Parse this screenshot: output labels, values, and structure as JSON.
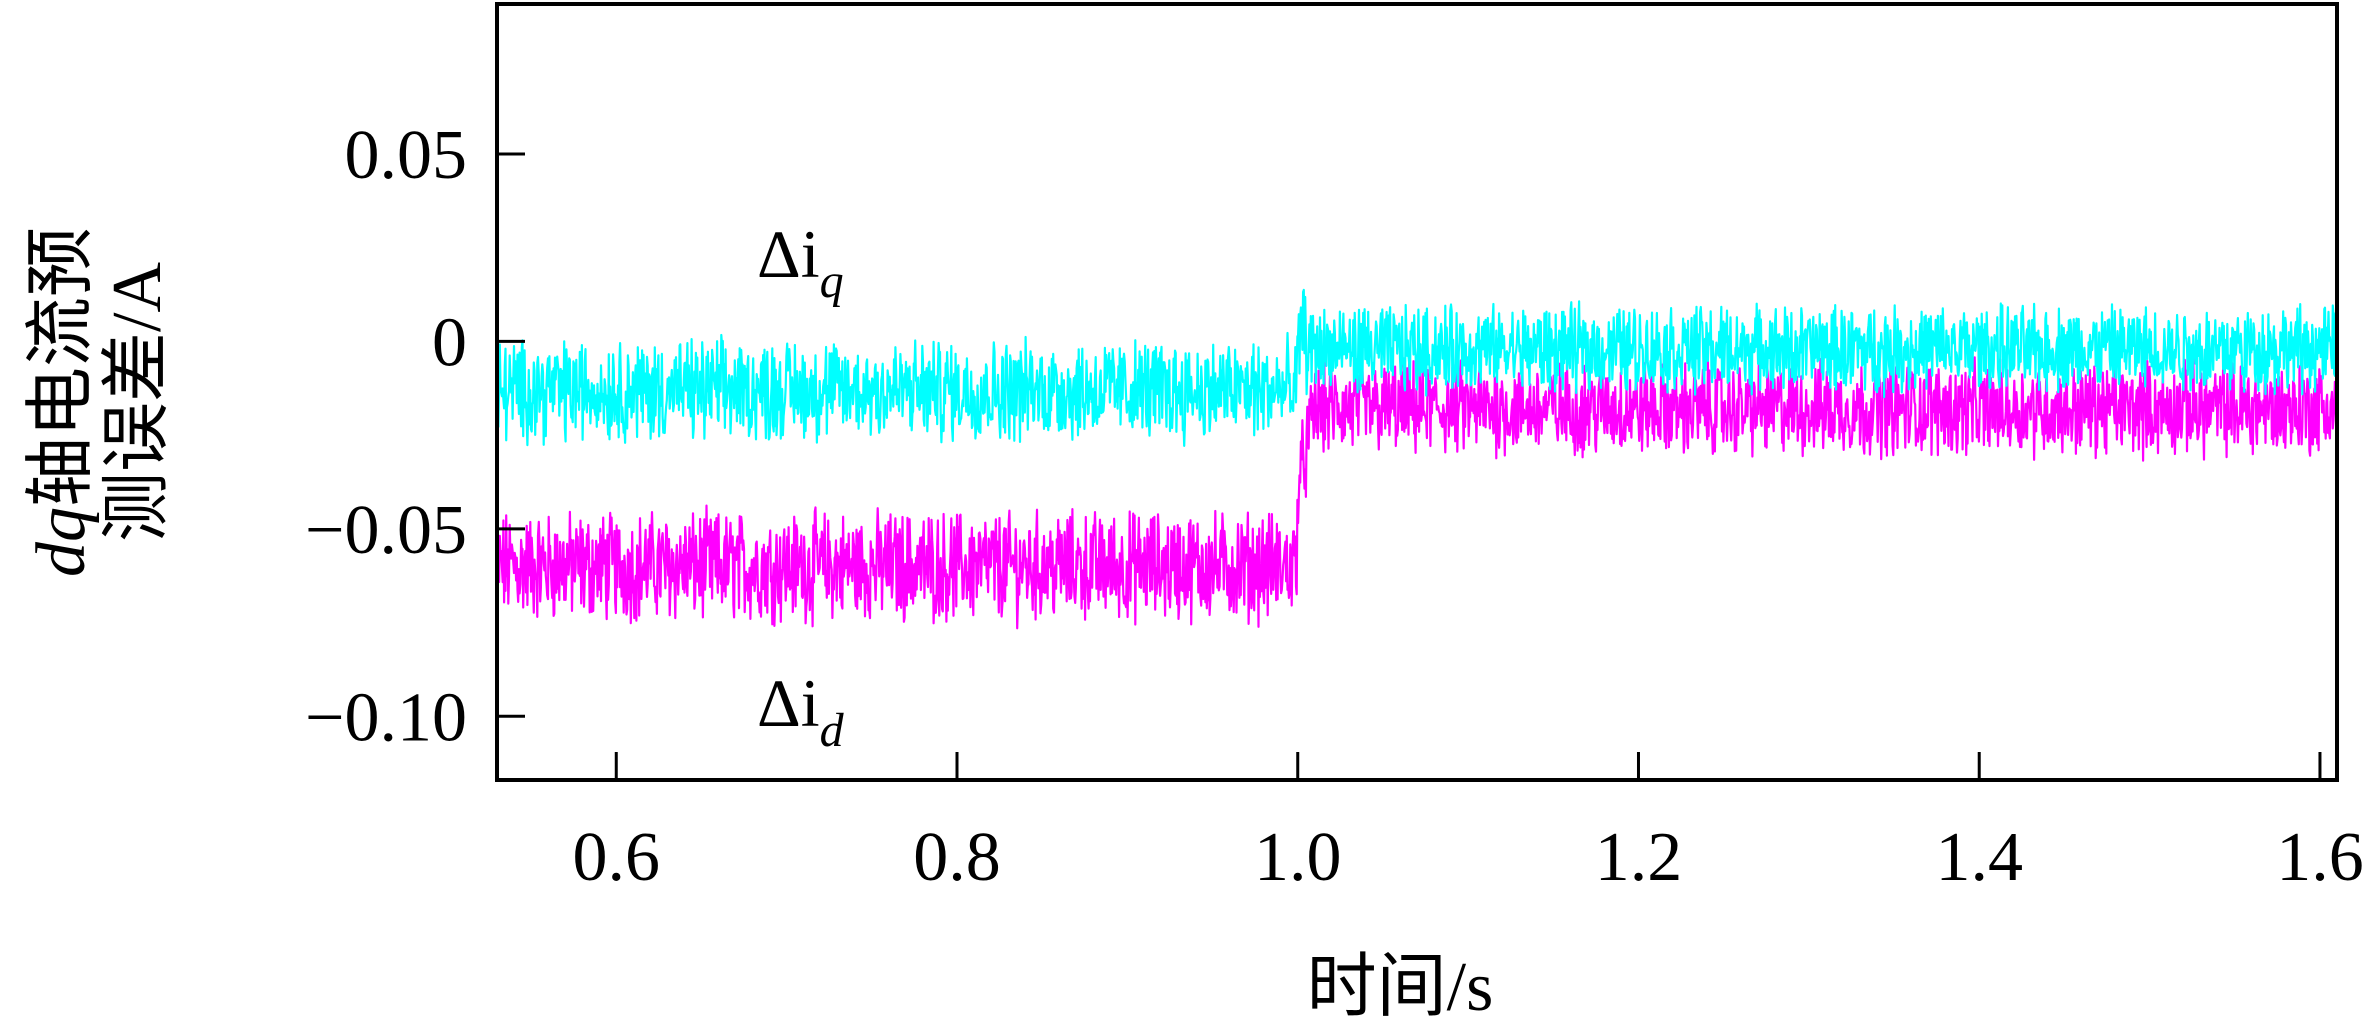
{
  "chart_data": {
    "type": "line",
    "xlabel": "时间/s",
    "ylabel_line1": "dq轴电流预",
    "ylabel_line1_italic": "dq",
    "ylabel_line1_rest": "轴电流预",
    "ylabel_line2": "测误差/A",
    "xlim": [
      0.53,
      1.61
    ],
    "ylim": [
      -0.117,
      0.09
    ],
    "x_ticks": [
      {
        "value": 0.6,
        "label": "0.6"
      },
      {
        "value": 0.8,
        "label": "0.8"
      },
      {
        "value": 1.0,
        "label": "1.0"
      },
      {
        "value": 1.2,
        "label": "1.2"
      },
      {
        "value": 1.4,
        "label": "1.4"
      },
      {
        "value": 1.6,
        "label": "1.6"
      }
    ],
    "y_ticks": [
      {
        "value": 0.05,
        "label": "0.05"
      },
      {
        "value": 0.0,
        "label": "0"
      },
      {
        "value": -0.05,
        "label": "−0.05"
      },
      {
        "value": -0.1,
        "label": "−0.10"
      }
    ],
    "series": [
      {
        "name": "Δiq",
        "label_main": "Δi",
        "label_sub": "q",
        "color": "#00ffff",
        "x": [
          0.53,
          0.999,
          1.0,
          1.003,
          1.005,
          1.61
        ],
        "y_mean": [
          -0.013,
          -0.013,
          -0.005,
          0.007,
          -0.002,
          -0.002
        ],
        "noise_amp": 0.011
      },
      {
        "name": "Δid",
        "label_main": "Δi",
        "label_sub": "d",
        "color": "#ff00ff",
        "x": [
          0.53,
          0.999,
          1.0,
          1.01,
          1.015,
          1.61
        ],
        "y_mean": [
          -0.06,
          -0.06,
          -0.04,
          -0.018,
          -0.018,
          -0.018
        ],
        "noise_amp": 0.012
      }
    ]
  }
}
